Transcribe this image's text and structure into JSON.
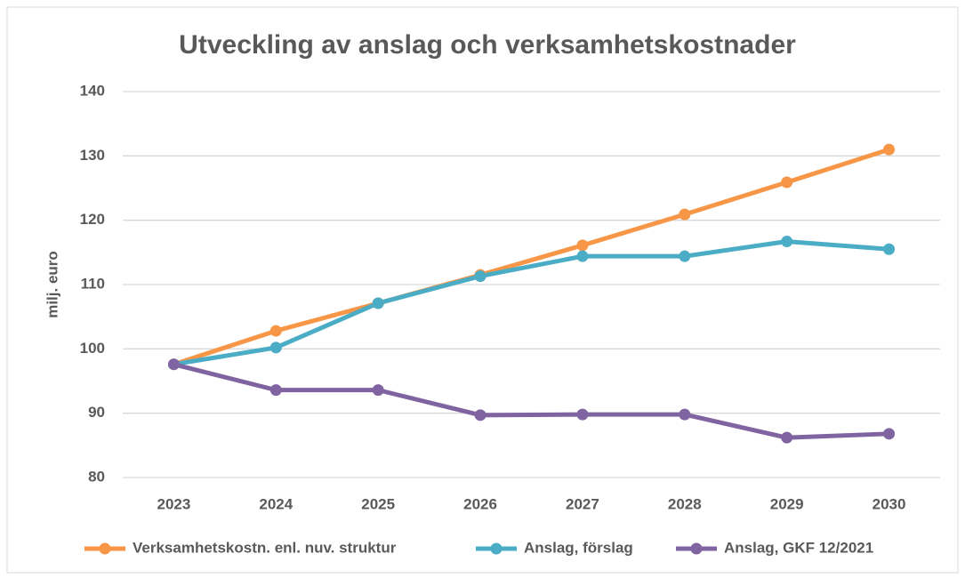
{
  "chart_data": {
    "type": "line",
    "title": "Utveckling av anslag och verksamhetskostnader",
    "y_label": "milj. euro",
    "categories": [
      "2023",
      "2024",
      "2025",
      "2026",
      "2027",
      "2028",
      "2029",
      "2030"
    ],
    "series": [
      {
        "name": "Verksamhetskostn. enl. nuv. struktur",
        "color": "#f79646",
        "values": [
          97.6,
          102.8,
          107.1,
          111.5,
          116.1,
          120.9,
          125.9,
          131.0
        ]
      },
      {
        "name": "Anslag, förslag",
        "color": "#4bacc6",
        "values": [
          97.6,
          100.2,
          107.1,
          111.3,
          114.4,
          114.4,
          116.7,
          115.5
        ]
      },
      {
        "name": "Anslag, GKF 12/2021",
        "color": "#8064a2",
        "values": [
          97.6,
          93.6,
          93.6,
          89.7,
          89.8,
          89.8,
          86.2,
          86.8
        ]
      }
    ],
    "ylim": [
      80,
      140
    ],
    "yticks": [
      80,
      90,
      100,
      110,
      120,
      130,
      140
    ],
    "grid": true,
    "legend": "bottom"
  }
}
